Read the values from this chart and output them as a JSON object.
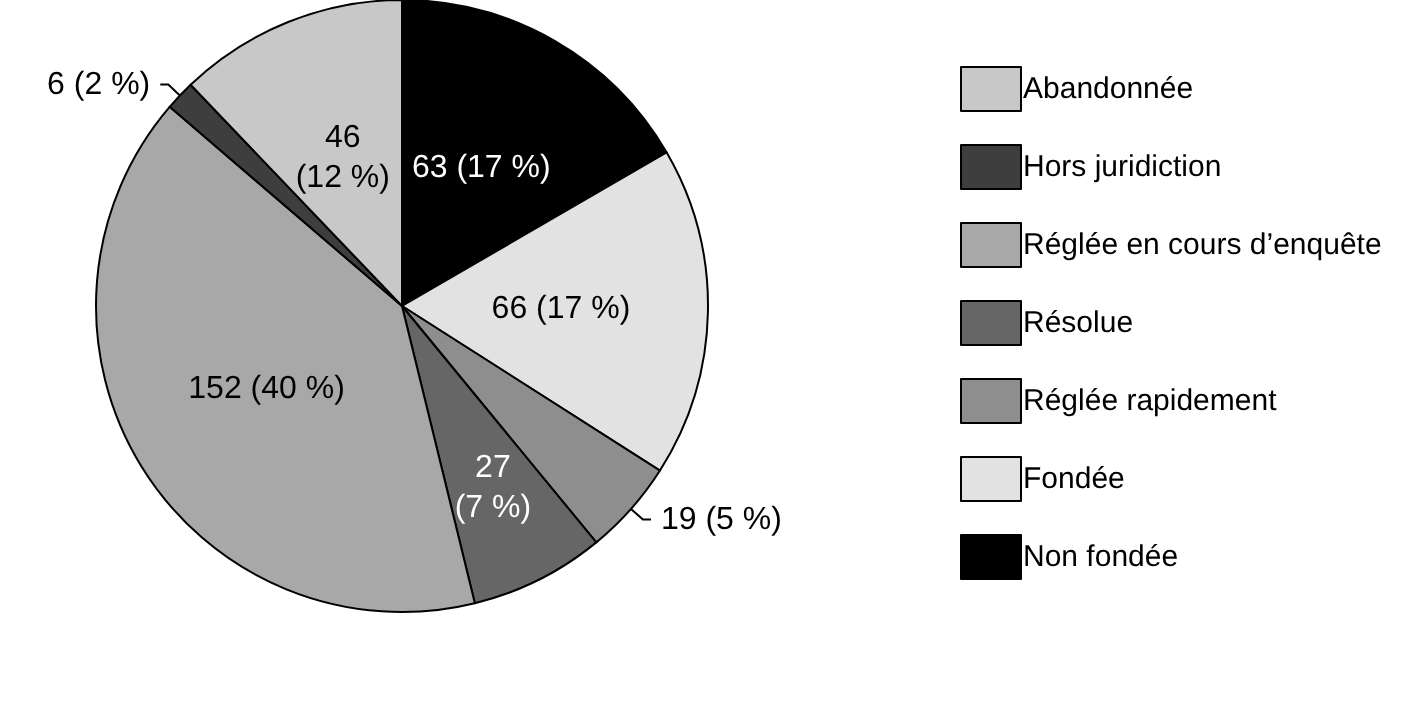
{
  "chart_data": {
    "type": "pie",
    "categories": [
      "Non fondée",
      "Fondée",
      "Réglée rapidement",
      "Résolue",
      "Réglée en cours d’enquête",
      "Hors juridiction",
      "Abandonnée"
    ],
    "values": [
      63,
      66,
      19,
      27,
      152,
      6,
      46
    ],
    "colors": [
      "#000000",
      "#e2e2e2",
      "#8e8e8e",
      "#666666",
      "#a8a8a8",
      "#3e3e3e",
      "#c8c8c8"
    ],
    "value_labels": [
      "63 (17 %)",
      "66 (17 %)",
      "19 (5 %)",
      "27\n(7 %)",
      "152 (40 %)",
      "6 (2 %)",
      "46\n(12 %)"
    ],
    "legend": "right"
  }
}
